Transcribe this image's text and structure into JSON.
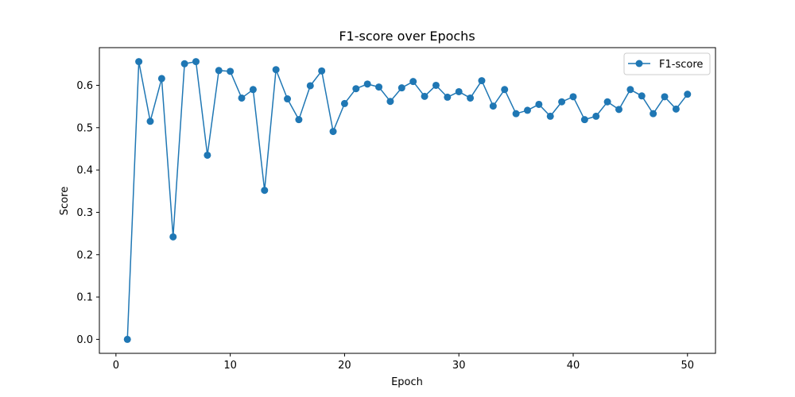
{
  "chart_data": {
    "type": "line",
    "title": "F1-score over Epochs",
    "xlabel": "Epoch",
    "ylabel": "Score",
    "xlim": [
      -1.45,
      52.45
    ],
    "ylim": [
      -0.033,
      0.689
    ],
    "xticks": [
      0,
      10,
      20,
      30,
      40,
      50
    ],
    "yticks": [
      0.0,
      0.1,
      0.2,
      0.3,
      0.4,
      0.5,
      0.6
    ],
    "grid": false,
    "legend_position": "top-right",
    "series": [
      {
        "name": "F1-score",
        "color": "#1f77b4",
        "marker": "circle",
        "x": [
          1,
          2,
          3,
          4,
          5,
          6,
          7,
          8,
          9,
          10,
          11,
          12,
          13,
          14,
          15,
          16,
          17,
          18,
          19,
          20,
          21,
          22,
          23,
          24,
          25,
          26,
          27,
          28,
          29,
          30,
          31,
          32,
          33,
          34,
          35,
          36,
          37,
          38,
          39,
          40,
          41,
          42,
          43,
          44,
          45,
          46,
          47,
          48,
          49,
          50
        ],
        "values": [
          0.0,
          0.656,
          0.515,
          0.616,
          0.242,
          0.651,
          0.656,
          0.435,
          0.635,
          0.633,
          0.57,
          0.59,
          0.352,
          0.637,
          0.568,
          0.519,
          0.599,
          0.634,
          0.491,
          0.557,
          0.592,
          0.603,
          0.596,
          0.562,
          0.594,
          0.609,
          0.574,
          0.6,
          0.572,
          0.585,
          0.57,
          0.611,
          0.551,
          0.59,
          0.533,
          0.541,
          0.555,
          0.527,
          0.561,
          0.573,
          0.519,
          0.527,
          0.561,
          0.543,
          0.59,
          0.575,
          0.533,
          0.573,
          0.544,
          0.579
        ]
      }
    ]
  }
}
